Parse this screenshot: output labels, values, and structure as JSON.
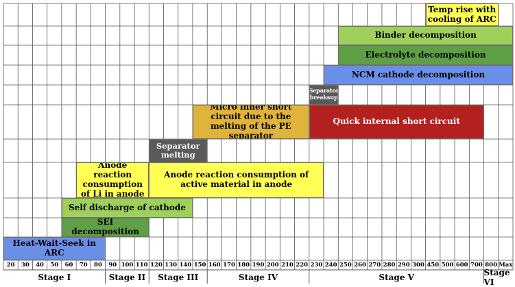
{
  "axis": {
    "ticks": [
      "20",
      "30",
      "40",
      "50",
      "60",
      "70",
      "80",
      "90",
      "100",
      "110",
      "120",
      "130",
      "140",
      "150",
      "160",
      "170",
      "180",
      "190",
      "200",
      "210",
      "220",
      "230",
      "240",
      "250",
      "260",
      "270",
      "280",
      "290",
      "300",
      "450",
      "500",
      "600",
      "700",
      "800",
      "Max"
    ]
  },
  "stages": [
    {
      "label": "Stage I",
      "from": 0,
      "to": 7
    },
    {
      "label": "Stage II",
      "from": 7,
      "to": 10
    },
    {
      "label": "Stage III",
      "from": 10,
      "to": 14
    },
    {
      "label": "Stage IV",
      "from": 14,
      "to": 21
    },
    {
      "label": "Stage V",
      "from": 21,
      "to": 33
    },
    {
      "label": "Stage VI",
      "from": 33,
      "to": 35
    }
  ],
  "colors": {
    "yellow": "#ffff55",
    "light_green": "#9fd05a",
    "dark_green": "#5f9f45",
    "blue": "#6b8ee6",
    "dark_gray": "#5a5a5a",
    "orange": "#e0b43a",
    "red": "#b3201f"
  },
  "events": [
    {
      "id": "temp-rise-with-cooling",
      "label": "Temp rise with cooling of ARC",
      "start": 29,
      "end": 34,
      "row": 0,
      "color": "yellow"
    },
    {
      "id": "binder-decomposition",
      "label": "Binder decomposition",
      "start": 23,
      "end": 35,
      "row": 1,
      "color": "light_green"
    },
    {
      "id": "electrolyte-decomposition",
      "label": "Electrolyte decomposition",
      "start": 23,
      "end": 35,
      "row": 2,
      "color": "dark_green"
    },
    {
      "id": "ncm-cathode-decomposition",
      "label": "NCM cathode decomposition",
      "start": 22,
      "end": 35,
      "row": 3,
      "color": "blue"
    },
    {
      "id": "separator-breaksup",
      "label": "Separator breaksup",
      "start": 21,
      "end": 23,
      "row": 4,
      "color": "dark_gray"
    },
    {
      "id": "micro-inner-short-circuit",
      "label": "Micro inner short circuit due to the melting of the PE separator",
      "start": 13,
      "end": 21,
      "row": 5,
      "color": "orange"
    },
    {
      "id": "quick-internal-short-circuit",
      "label": "Quick internal short circuit",
      "start": 21,
      "end": 33,
      "row": 5,
      "color": "red"
    },
    {
      "id": "separator-melting",
      "label": "Separator melting",
      "start": 10,
      "end": 14,
      "row": 6,
      "color": "dark_gray"
    },
    {
      "id": "anode-reaction-consumption-li",
      "label": "Anode reaction consumption of Li in anode",
      "start": 5,
      "end": 10,
      "row": 7,
      "color": "yellow"
    },
    {
      "id": "anode-reaction-consumption-active",
      "label": "Anode reaction consumption of active material in anode",
      "start": 10,
      "end": 22,
      "row": 7,
      "color": "yellow"
    },
    {
      "id": "self-discharge-of-cathode",
      "label": "Self discharge of cathode",
      "start": 4,
      "end": 13,
      "row": 8,
      "color": "light_green"
    },
    {
      "id": "sei-decomposition",
      "label": "SEI decomposition",
      "start": 4,
      "end": 10,
      "row": 9,
      "color": "dark_green"
    },
    {
      "id": "heat-wait-seek-in-arc",
      "label": "Heat-Wait-Seek in ARC",
      "start": 0,
      "end": 7,
      "row": 10,
      "color": "blue"
    }
  ]
}
